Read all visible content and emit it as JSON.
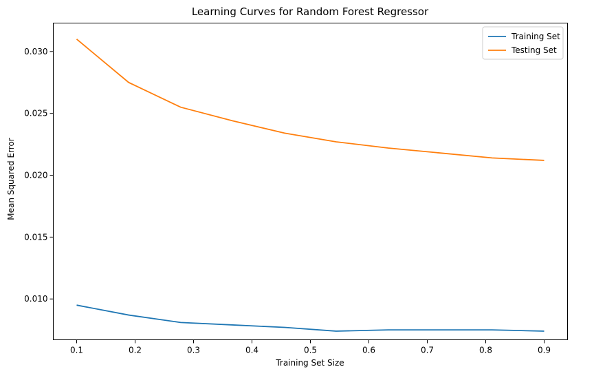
{
  "chart_data": {
    "type": "line",
    "title": "Learning Curves for Random Forest Regressor",
    "xlabel": "Training Set Size",
    "ylabel": "Mean Squared Error",
    "xlim": [
      0.06,
      0.94
    ],
    "ylim": [
      0.0067,
      0.0323
    ],
    "xticks": [
      0.1,
      0.2,
      0.3,
      0.4,
      0.5,
      0.6,
      0.7,
      0.8,
      0.9
    ],
    "xtick_labels": [
      "0.1",
      "0.2",
      "0.3",
      "0.4",
      "0.5",
      "0.6",
      "0.7",
      "0.8",
      "0.9"
    ],
    "yticks": [
      0.01,
      0.015,
      0.02,
      0.025,
      0.03
    ],
    "ytick_labels": [
      "0.010",
      "0.015",
      "0.020",
      "0.025",
      "0.030"
    ],
    "grid": false,
    "legend_position": "top-right",
    "x": [
      0.1,
      0.189,
      0.278,
      0.367,
      0.456,
      0.544,
      0.633,
      0.722,
      0.811,
      0.9
    ],
    "series": [
      {
        "name": "Training Set",
        "color": "#1f77b4",
        "values": [
          0.0095,
          0.0087,
          0.0081,
          0.0079,
          0.0077,
          0.0074,
          0.0075,
          0.0075,
          0.0075,
          0.0074
        ]
      },
      {
        "name": "Testing Set",
        "color": "#ff7f0e",
        "values": [
          0.031,
          0.0275,
          0.0255,
          0.0244,
          0.0234,
          0.0227,
          0.0222,
          0.0218,
          0.0214,
          0.0212
        ]
      }
    ]
  }
}
